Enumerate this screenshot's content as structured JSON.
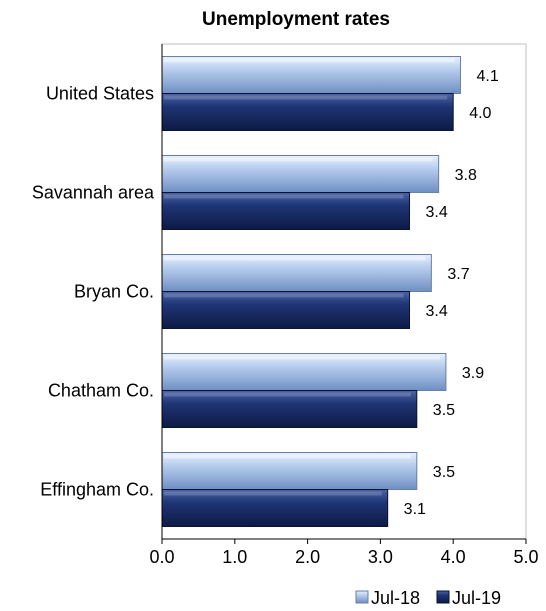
{
  "chart_data": {
    "type": "bar",
    "orientation": "horizontal",
    "title": "Unemployment rates",
    "categories": [
      "United States",
      "Savannah area",
      "Bryan Co.",
      "Chatham Co.",
      "Effingham Co."
    ],
    "series": [
      {
        "name": "Jul-18",
        "values": [
          4.1,
          3.8,
          3.7,
          3.9,
          3.5
        ],
        "color": "#a9c4ea"
      },
      {
        "name": "Jul-19",
        "values": [
          4.0,
          3.4,
          3.4,
          3.5,
          3.1
        ],
        "color": "#1c2f66"
      }
    ],
    "value_labels": [
      [
        "4.1",
        "3.8",
        "3.7",
        "3.9",
        "3.5"
      ],
      [
        "4.0",
        "3.4",
        "3.4",
        "3.5",
        "3.1"
      ]
    ],
    "xlim": [
      0,
      5
    ],
    "xticks": [
      0,
      1,
      2,
      3,
      4,
      5
    ],
    "xtick_labels": [
      "0.0",
      "1.0",
      "2.0",
      "3.0",
      "4.0",
      "5.0"
    ],
    "xlabel": "",
    "ylabel": "",
    "grid": false,
    "legend_position": "bottom-right"
  }
}
